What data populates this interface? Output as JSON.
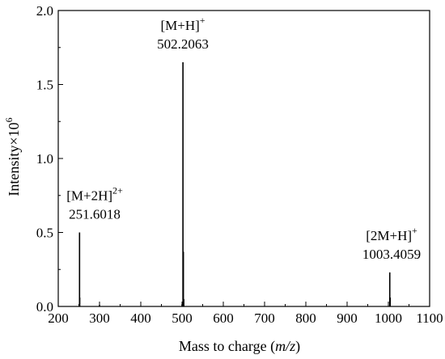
{
  "chart_data": {
    "type": "bar",
    "title": "",
    "xlabel": {
      "prefix": "Mass to charge (",
      "italic": "m/z",
      "suffix": ")"
    },
    "ylabel": {
      "base": "Intensity×10",
      "exponent": "6"
    },
    "xlim": [
      200,
      1100
    ],
    "ylim": [
      0,
      2.0
    ],
    "xticks": [
      200,
      300,
      400,
      500,
      600,
      700,
      800,
      900,
      1000,
      1100
    ],
    "xtick_labels": [
      "200",
      "300",
      "400",
      "500",
      "600",
      "700",
      "800",
      "900",
      "1000",
      "1100"
    ],
    "yticks": [
      0,
      0.5,
      1.0,
      1.5,
      2.0
    ],
    "ytick_labels": [
      "0.0",
      "0.5",
      "1.0",
      "1.5",
      "2.0"
    ],
    "grid": false,
    "legend": "none",
    "series": [
      {
        "peaks": [
          {
            "x": 251.6018,
            "y": 0.5
          },
          {
            "x": 252.0,
            "y": 0.06
          },
          {
            "x": 300.0,
            "y": 0.01
          },
          {
            "x": 500.0,
            "y": 0.015
          },
          {
            "x": 502.2063,
            "y": 1.65
          },
          {
            "x": 503.2,
            "y": 0.37
          },
          {
            "x": 504.2,
            "y": 0.05
          },
          {
            "x": 1003.4059,
            "y": 0.23
          },
          {
            "x": 1004.4,
            "y": 0.06
          }
        ]
      }
    ],
    "annotations": [
      {
        "ion": "[M+2H]",
        "charge": "2+",
        "mz": "251.6018",
        "at_x": 251.6018,
        "at_y": 0.5
      },
      {
        "ion": "[M+H]",
        "charge": "+",
        "mz": "502.2063",
        "at_x": 502.2063,
        "at_y": 1.65
      },
      {
        "ion": "[2M+H]",
        "charge": "+",
        "mz": "1003.4059",
        "at_x": 1003.4059,
        "at_y": 0.23
      }
    ]
  }
}
